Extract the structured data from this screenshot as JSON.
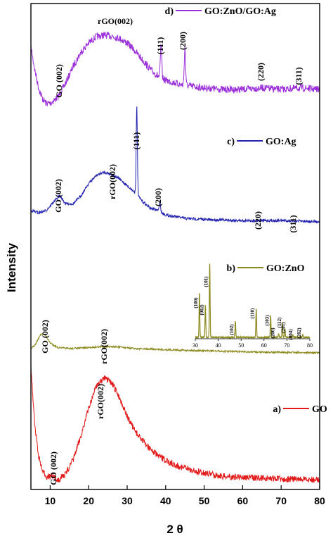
{
  "chart_data": {
    "type": "line",
    "xlabel": "2 θ",
    "ylabel": "Intensity",
    "xlim": [
      5,
      80
    ],
    "xticks": [
      "10",
      "20",
      "30",
      "40",
      "50",
      "60",
      "70",
      "80"
    ],
    "series": [
      {
        "name": "GO:ZnO/GO:Ag",
        "letter": "d)",
        "color": "#9b30d9",
        "profile": [
          [
            5,
            0.85
          ],
          [
            6,
            0.55
          ],
          [
            7,
            0.32
          ],
          [
            8,
            0.18
          ],
          [
            9,
            0.12
          ],
          [
            10,
            0.12
          ],
          [
            12,
            0.2
          ],
          [
            14,
            0.38
          ],
          [
            16,
            0.6
          ],
          [
            18,
            0.78
          ],
          [
            20,
            0.9
          ],
          [
            22,
            0.98
          ],
          [
            24,
            1.0
          ],
          [
            26,
            0.99
          ],
          [
            28,
            0.96
          ],
          [
            30,
            0.9
          ],
          [
            32,
            0.8
          ],
          [
            34,
            0.68
          ],
          [
            36,
            0.56
          ],
          [
            38,
            0.47
          ],
          [
            40,
            0.42
          ],
          [
            44,
            0.36
          ],
          [
            50,
            0.32
          ],
          [
            55,
            0.3
          ],
          [
            60,
            0.3
          ],
          [
            65,
            0.32
          ],
          [
            70,
            0.3
          ],
          [
            75,
            0.32
          ],
          [
            80,
            0.3
          ]
        ],
        "peaks": [
          {
            "label": "GO (002)",
            "x": 10.5
          },
          {
            "label": "rGO(002)",
            "x": 25
          },
          {
            "label": "(111)",
            "x": 38.8,
            "height": 0.42
          },
          {
            "label": "(200)",
            "x": 45,
            "height": 0.48
          },
          {
            "label": "(220)",
            "x": 65.5
          },
          {
            "label": "(311)",
            "x": 75
          }
        ]
      },
      {
        "name": "GO:Ag",
        "letter": "c)",
        "color": "#2424b0",
        "profile": [
          [
            5,
            0.12
          ],
          [
            7,
            0.1
          ],
          [
            9,
            0.12
          ],
          [
            11,
            0.2
          ],
          [
            12.5,
            0.25
          ],
          [
            14,
            0.18
          ],
          [
            16,
            0.18
          ],
          [
            18,
            0.25
          ],
          [
            20,
            0.36
          ],
          [
            22,
            0.43
          ],
          [
            24,
            0.46
          ],
          [
            26,
            0.44
          ],
          [
            28,
            0.4
          ],
          [
            30,
            0.34
          ],
          [
            32,
            0.28
          ],
          [
            34,
            0.2
          ],
          [
            36,
            0.14
          ],
          [
            38,
            0.12
          ],
          [
            40,
            0.08
          ],
          [
            45,
            0.05
          ],
          [
            50,
            0.04
          ],
          [
            60,
            0.03
          ],
          [
            70,
            0.03
          ],
          [
            80,
            0.02
          ]
        ],
        "peaks": [
          {
            "label": "GO (002)",
            "x": 12.5
          },
          {
            "label": "rGO(002)",
            "x": 23
          },
          {
            "label": "(111)",
            "x": 32.5,
            "height": 0.78
          },
          {
            "label": "(200)",
            "x": 38.5,
            "height": 0.09
          },
          {
            "label": "(220)",
            "x": 65
          },
          {
            "label": "(311)",
            "x": 76
          }
        ]
      },
      {
        "name": "GO:ZnO",
        "letter": "b)",
        "color": "#8c8a1e",
        "profile": [
          [
            5,
            0.05
          ],
          [
            6,
            0.1
          ],
          [
            7.5,
            0.3
          ],
          [
            8.5,
            0.32
          ],
          [
            10,
            0.15
          ],
          [
            12,
            0.06
          ],
          [
            15,
            0.04
          ],
          [
            20,
            0.06
          ],
          [
            24,
            0.08
          ],
          [
            28,
            0.07
          ],
          [
            32,
            0.04
          ],
          [
            40,
            0.02
          ],
          [
            50,
            0.0
          ],
          [
            60,
            -0.02
          ],
          [
            70,
            -0.03
          ],
          [
            80,
            -0.04
          ]
        ],
        "peaks": [
          {
            "label": "GO (002)",
            "x": 8.5
          },
          {
            "label": "rGO(002)",
            "x": 24
          }
        ],
        "inset": {
          "xlim": [
            30,
            80
          ],
          "xticks": [
            "30",
            "40",
            "50",
            "60",
            "70",
            "80"
          ],
          "peaks": [
            {
              "label": "(100)",
              "x": 31.8,
              "height": 0.6
            },
            {
              "label": "(002)",
              "x": 34.4,
              "height": 0.43
            },
            {
              "label": "(101)",
              "x": 36.3,
              "height": 1.0
            },
            {
              "label": "(102)",
              "x": 47.5,
              "height": 0.22
            },
            {
              "label": "(110)",
              "x": 56.6,
              "height": 0.38
            },
            {
              "label": "(103)",
              "x": 62.9,
              "height": 0.3
            },
            {
              "label": "(200)",
              "x": 66.4,
              "height": 0.05
            },
            {
              "label": "(112)",
              "x": 68.0,
              "height": 0.2
            },
            {
              "label": "(201)",
              "x": 69.1,
              "height": 0.12
            },
            {
              "label": "(004)",
              "x": 72.6,
              "height": 0.03
            },
            {
              "label": "(202)",
              "x": 76.9,
              "height": 0.04
            }
          ]
        }
      },
      {
        "name": "GO",
        "letter": "a)",
        "color": "#e21a1a",
        "profile": [
          [
            5,
            1.0
          ],
          [
            5.5,
            0.75
          ],
          [
            6,
            0.5
          ],
          [
            7,
            0.25
          ],
          [
            8,
            0.12
          ],
          [
            9,
            0.08
          ],
          [
            10.5,
            0.08
          ],
          [
            12,
            0.05
          ],
          [
            14,
            0.1
          ],
          [
            16,
            0.22
          ],
          [
            18,
            0.42
          ],
          [
            20,
            0.65
          ],
          [
            22,
            0.84
          ],
          [
            24,
            0.9
          ],
          [
            26,
            0.86
          ],
          [
            28,
            0.74
          ],
          [
            30,
            0.58
          ],
          [
            32,
            0.46
          ],
          [
            35,
            0.34
          ],
          [
            38,
            0.25
          ],
          [
            42,
            0.18
          ],
          [
            48,
            0.12
          ],
          [
            55,
            0.08
          ],
          [
            62,
            0.07
          ],
          [
            70,
            0.06
          ],
          [
            80,
            0.05
          ]
        ],
        "peaks": [
          {
            "label": "GO (002)",
            "x": 10.5
          },
          {
            "label": "rGO(002)",
            "x": 24
          }
        ]
      }
    ]
  }
}
